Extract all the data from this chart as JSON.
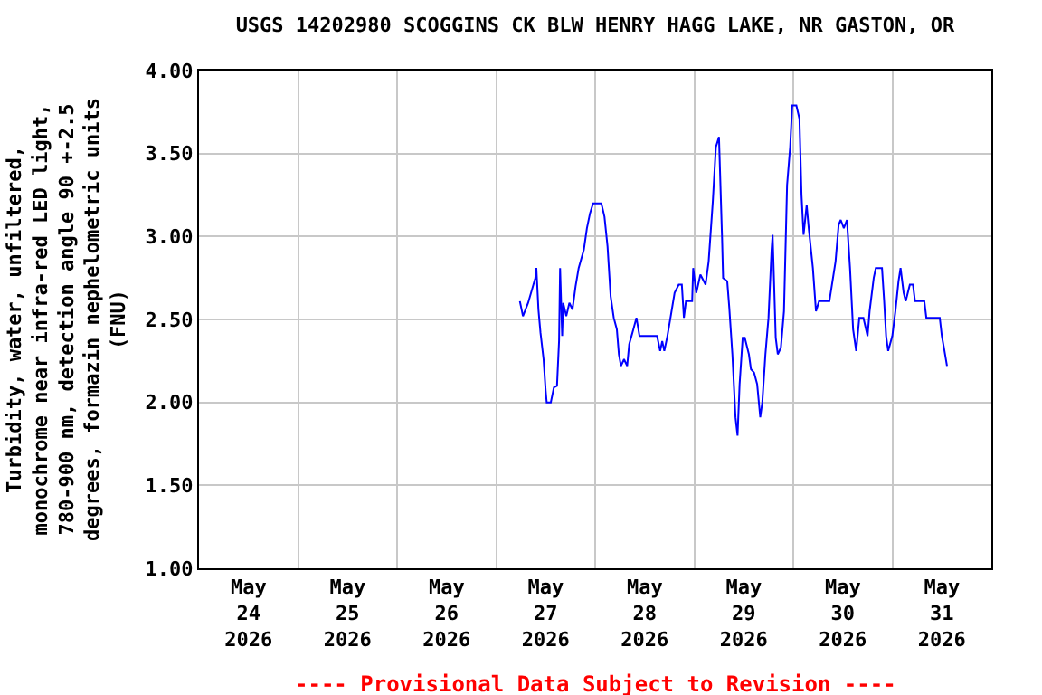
{
  "chart_data": {
    "type": "line",
    "title": "USGS 14202980 SCOGGINS CK BLW HENRY HAGG LAKE, NR GASTON, OR",
    "ylabel": "Turbidity, water, unfiltered,\nmonochrome near infra-red LED light,\n780-900 nm, detection angle 90 +-2.5\ndegrees, formazin nephelometric units\n(FNU)",
    "annotations": [
      "---- Provisional Data Subject to Revision ----"
    ],
    "x": [
      "2026-05-27T05:45",
      "2026-05-27T06:30",
      "2026-05-27T07:45",
      "2026-05-27T09:30",
      "2026-05-27T09:45",
      "2026-05-27T10:15",
      "2026-05-27T10:45",
      "2026-05-27T11:30",
      "2026-05-27T12:00",
      "2026-05-27T12:15",
      "2026-05-27T13:15",
      "2026-05-27T14:00",
      "2026-05-27T14:45",
      "2026-05-27T15:15",
      "2026-05-27T15:30",
      "2026-05-27T16:00",
      "2026-05-27T16:15",
      "2026-05-27T17:00",
      "2026-05-27T17:45",
      "2026-05-27T18:30",
      "2026-05-27T19:15",
      "2026-05-27T20:00",
      "2026-05-27T21:15",
      "2026-05-27T22:00",
      "2026-05-27T22:45",
      "2026-05-27T23:30",
      "2026-05-28T01:30",
      "2026-05-28T02:15",
      "2026-05-28T03:00",
      "2026-05-28T03:45",
      "2026-05-28T04:30",
      "2026-05-28T05:15",
      "2026-05-28T05:45",
      "2026-05-28T06:15",
      "2026-05-28T07:00",
      "2026-05-28T07:45",
      "2026-05-28T08:15",
      "2026-05-28T09:15",
      "2026-05-28T10:00",
      "2026-05-28T10:45",
      "2026-05-28T15:00",
      "2026-05-28T15:45",
      "2026-05-28T16:15",
      "2026-05-28T16:45",
      "2026-05-28T17:30",
      "2026-05-28T18:15",
      "2026-05-28T19:15",
      "2026-05-28T20:15",
      "2026-05-28T21:00",
      "2026-05-28T21:30",
      "2026-05-28T22:00",
      "2026-05-28T23:30",
      "2026-05-28T23:45",
      "2026-05-29T00:30",
      "2026-05-29T01:30",
      "2026-05-29T02:45",
      "2026-05-29T03:30",
      "2026-05-29T04:30",
      "2026-05-29T05:00",
      "2026-05-29T05:15",
      "2026-05-29T06:00",
      "2026-05-29T06:45",
      "2026-05-29T07:00",
      "2026-05-29T08:00",
      "2026-05-29T08:30",
      "2026-05-29T09:15",
      "2026-05-29T10:00",
      "2026-05-29T10:30",
      "2026-05-29T11:00",
      "2026-05-29T11:45",
      "2026-05-29T12:15",
      "2026-05-29T13:15",
      "2026-05-29T13:45",
      "2026-05-29T14:30",
      "2026-05-29T15:15",
      "2026-05-29T16:00",
      "2026-05-29T16:30",
      "2026-05-29T17:15",
      "2026-05-29T18:00",
      "2026-05-29T18:45",
      "2026-05-29T19:00",
      "2026-05-29T19:45",
      "2026-05-29T20:15",
      "2026-05-29T21:00",
      "2026-05-29T21:45",
      "2026-05-29T22:30",
      "2026-05-29T23:15",
      "2026-05-29T23:45",
      "2026-05-30T00:45",
      "2026-05-30T01:30",
      "2026-05-30T02:00",
      "2026-05-30T02:30",
      "2026-05-30T03:15",
      "2026-05-30T03:45",
      "2026-05-30T04:45",
      "2026-05-30T05:30",
      "2026-05-30T06:15",
      "2026-05-30T08:45",
      "2026-05-30T09:30",
      "2026-05-30T10:15",
      "2026-05-30T11:00",
      "2026-05-30T11:30",
      "2026-05-30T12:15",
      "2026-05-30T13:00",
      "2026-05-30T13:45",
      "2026-05-30T14:30",
      "2026-05-30T15:15",
      "2026-05-30T16:00",
      "2026-05-30T17:00",
      "2026-05-30T18:00",
      "2026-05-30T18:30",
      "2026-05-30T19:30",
      "2026-05-30T20:00",
      "2026-05-30T21:30",
      "2026-05-30T22:00",
      "2026-05-30T22:30",
      "2026-05-30T23:00",
      "2026-05-31T00:00",
      "2026-05-31T00:45",
      "2026-05-31T01:30",
      "2026-05-31T02:00",
      "2026-05-31T02:45",
      "2026-05-31T03:15",
      "2026-05-31T04:15",
      "2026-05-31T05:00",
      "2026-05-31T05:30",
      "2026-05-31T07:45",
      "2026-05-31T08:15",
      "2026-05-31T11:30",
      "2026-05-31T12:00",
      "2026-05-31T12:30",
      "2026-05-31T13:15"
    ],
    "series": [
      {
        "color": "#0000ff",
        "values": [
          2.61,
          2.52,
          2.6,
          2.75,
          2.81,
          2.56,
          2.42,
          2.26,
          2.07,
          2.0,
          2.0,
          2.09,
          2.1,
          2.37,
          2.81,
          2.4,
          2.6,
          2.52,
          2.6,
          2.56,
          2.7,
          2.81,
          2.92,
          3.05,
          3.14,
          3.2,
          3.2,
          3.12,
          2.94,
          2.64,
          2.51,
          2.44,
          2.29,
          2.22,
          2.26,
          2.22,
          2.35,
          2.44,
          2.51,
          2.4,
          2.4,
          2.31,
          2.37,
          2.31,
          2.4,
          2.51,
          2.66,
          2.71,
          2.71,
          2.51,
          2.61,
          2.61,
          2.81,
          2.66,
          2.77,
          2.71,
          2.85,
          3.21,
          3.43,
          3.54,
          3.6,
          2.99,
          2.75,
          2.73,
          2.57,
          2.29,
          1.91,
          1.8,
          2.11,
          2.39,
          2.39,
          2.29,
          2.2,
          2.18,
          2.11,
          1.91,
          2.0,
          2.29,
          2.51,
          2.92,
          3.01,
          2.39,
          2.29,
          2.33,
          2.55,
          3.31,
          3.54,
          3.79,
          3.79,
          3.71,
          3.25,
          3.01,
          3.19,
          3.05,
          2.81,
          2.55,
          2.61,
          2.61,
          2.73,
          2.85,
          3.07,
          3.1,
          3.05,
          3.1,
          2.81,
          2.44,
          2.31,
          2.51,
          2.51,
          2.4,
          2.55,
          2.75,
          2.81,
          2.81,
          2.62,
          2.4,
          2.31,
          2.4,
          2.55,
          2.73,
          2.81,
          2.66,
          2.61,
          2.71,
          2.71,
          2.61,
          2.61,
          2.51,
          2.51,
          2.4,
          2.33,
          2.22
        ]
      }
    ],
    "xlim": [
      "2026-05-24",
      "2026-06-01"
    ],
    "xticks": [
      {
        "value": "2026-05-24T12:00",
        "label": "May\n24\n2026"
      },
      {
        "value": "2026-05-25T12:00",
        "label": "May\n25\n2026"
      },
      {
        "value": "2026-05-26T12:00",
        "label": "May\n26\n2026"
      },
      {
        "value": "2026-05-27T12:00",
        "label": "May\n27\n2026"
      },
      {
        "value": "2026-05-28T12:00",
        "label": "May\n28\n2026"
      },
      {
        "value": "2026-05-29T12:00",
        "label": "May\n29\n2026"
      },
      {
        "value": "2026-05-30T12:00",
        "label": "May\n30\n2026"
      },
      {
        "value": "2026-05-31T12:00",
        "label": "May\n31\n2026"
      },
      {
        "value": "2026-05-25",
        "label": null
      },
      {
        "value": "2026-05-26",
        "label": null
      },
      {
        "value": "2026-05-27",
        "label": null
      },
      {
        "value": "2026-05-28",
        "label": null
      },
      {
        "value": "2026-05-29",
        "label": null
      },
      {
        "value": "2026-05-30",
        "label": null
      },
      {
        "value": "2026-05-31",
        "label": null
      }
    ],
    "ylim": [
      1,
      4
    ],
    "yticks": [
      {
        "value": 1,
        "label": "1.00"
      },
      {
        "value": 1.5,
        "label": "1.50"
      },
      {
        "value": 2,
        "label": "2.00"
      },
      {
        "value": 2.5,
        "label": "2.50"
      },
      {
        "value": 3,
        "label": "3.00"
      },
      {
        "value": 3.5,
        "label": "3.50"
      },
      {
        "value": 4,
        "label": "4.00"
      }
    ],
    "grid": true
  }
}
